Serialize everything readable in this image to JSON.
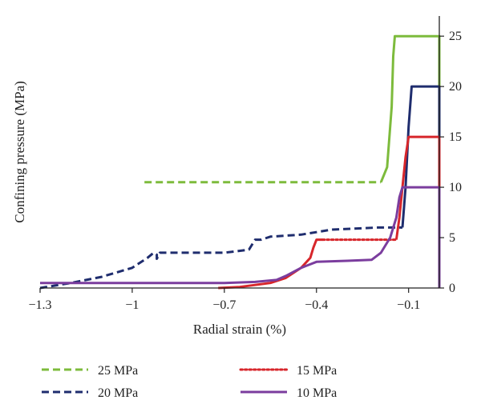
{
  "chart_data": {
    "type": "line",
    "title": "",
    "xlabel": "Radial strain (%)",
    "ylabel": "Confining pressure (MPa)",
    "xlim": [
      -1.3,
      0.0
    ],
    "ylim": [
      0,
      27
    ],
    "x_ticks": [
      -1.3,
      -1,
      -0.7,
      -0.4,
      -0.1
    ],
    "x_tick_labels": [
      "−1.3",
      "−1",
      "−0.7",
      "−0.4",
      "−0.1"
    ],
    "y_ticks": [
      0,
      5,
      10,
      15,
      20,
      25
    ],
    "y_tick_labels": [
      "0",
      "5",
      "10",
      "15",
      "20",
      "25"
    ],
    "y_axis_side": "right",
    "grid": false,
    "legend_position": "bottom",
    "series": [
      {
        "name": "25 MPa",
        "color": "#7dbb3c",
        "style": "dashed-then-solid",
        "dash_until_index": 2,
        "points": [
          [
            -0.96,
            10.5
          ],
          [
            -0.4,
            10.5
          ],
          [
            -0.19,
            10.5
          ],
          [
            -0.17,
            12
          ],
          [
            -0.155,
            18
          ],
          [
            -0.15,
            23
          ],
          [
            -0.145,
            25
          ],
          [
            0.0,
            25
          ],
          [
            0.0,
            10.5
          ]
        ]
      },
      {
        "name": "20 MPa",
        "color": "#1f2d6e",
        "style": "dashed",
        "points": [
          [
            -1.3,
            0
          ],
          [
            -1.2,
            0.5
          ],
          [
            -1.1,
            1.1
          ],
          [
            -1.0,
            2
          ],
          [
            -0.95,
            3
          ],
          [
            -0.93,
            3.5
          ],
          [
            -0.92,
            3.3
          ],
          [
            -0.92,
            2.9
          ],
          [
            -0.91,
            3.5
          ],
          [
            -0.7,
            3.5
          ],
          [
            -0.62,
            3.8
          ],
          [
            -0.6,
            4.8
          ],
          [
            -0.58,
            4.8
          ],
          [
            -0.55,
            5.1
          ],
          [
            -0.45,
            5.3
          ],
          [
            -0.35,
            5.8
          ],
          [
            -0.2,
            6
          ],
          [
            -0.12,
            6
          ]
        ]
      },
      {
        "name": "20 MPa",
        "color": "#1f2d6e",
        "style": "solid",
        "points": [
          [
            -0.12,
            6
          ],
          [
            -0.11,
            10
          ],
          [
            -0.1,
            16
          ],
          [
            -0.09,
            20
          ],
          [
            0.0,
            20
          ],
          [
            0.0,
            5.5
          ]
        ]
      },
      {
        "name": "15 MPa",
        "color": "#d7262b",
        "style": "solid",
        "points": [
          [
            -0.72,
            0
          ],
          [
            -0.65,
            0.1
          ],
          [
            -0.55,
            0.5
          ],
          [
            -0.5,
            1
          ],
          [
            -0.45,
            2
          ],
          [
            -0.42,
            3
          ],
          [
            -0.41,
            4
          ],
          [
            -0.4,
            4.8
          ],
          [
            -0.38,
            4.8
          ]
        ]
      },
      {
        "name": "15 MPa",
        "color": "#d7262b",
        "style": "dotted",
        "points": [
          [
            -0.38,
            4.8
          ],
          [
            -0.14,
            4.8
          ]
        ]
      },
      {
        "name": "15 MPa",
        "color": "#d7262b",
        "style": "solid",
        "points": [
          [
            -0.14,
            4.8
          ],
          [
            -0.13,
            7
          ],
          [
            -0.12,
            10
          ],
          [
            -0.11,
            13
          ],
          [
            -0.1,
            15
          ],
          [
            0.0,
            15
          ],
          [
            0.0,
            4.8
          ]
        ]
      },
      {
        "name": "10 MPa",
        "color": "#7b3d9e",
        "style": "solid",
        "points": [
          [
            -1.3,
            0.5
          ],
          [
            -1.0,
            0.5
          ],
          [
            -0.7,
            0.5
          ],
          [
            -0.6,
            0.6
          ],
          [
            -0.53,
            0.8
          ],
          [
            -0.5,
            1.2
          ],
          [
            -0.45,
            2
          ],
          [
            -0.4,
            2.6
          ],
          [
            -0.3,
            2.7
          ],
          [
            -0.22,
            2.8
          ],
          [
            -0.19,
            3.5
          ],
          [
            -0.16,
            5
          ],
          [
            -0.14,
            7
          ],
          [
            -0.13,
            9
          ],
          [
            -0.12,
            10
          ],
          [
            0.0,
            10
          ],
          [
            0.0,
            0
          ]
        ]
      }
    ],
    "legend": [
      {
        "label": "25 MPa",
        "color": "#7dbb3c",
        "style": "dashed",
        "row": 0,
        "col": 0
      },
      {
        "label": "15 MPa",
        "color": "#d7262b",
        "style": "dotted",
        "row": 0,
        "col": 1
      },
      {
        "label": "20 MPa",
        "color": "#1f2d6e",
        "style": "dashed",
        "row": 1,
        "col": 0
      },
      {
        "label": "10 MPa",
        "color": "#7b3d9e",
        "style": "solid",
        "row": 1,
        "col": 1
      }
    ]
  }
}
